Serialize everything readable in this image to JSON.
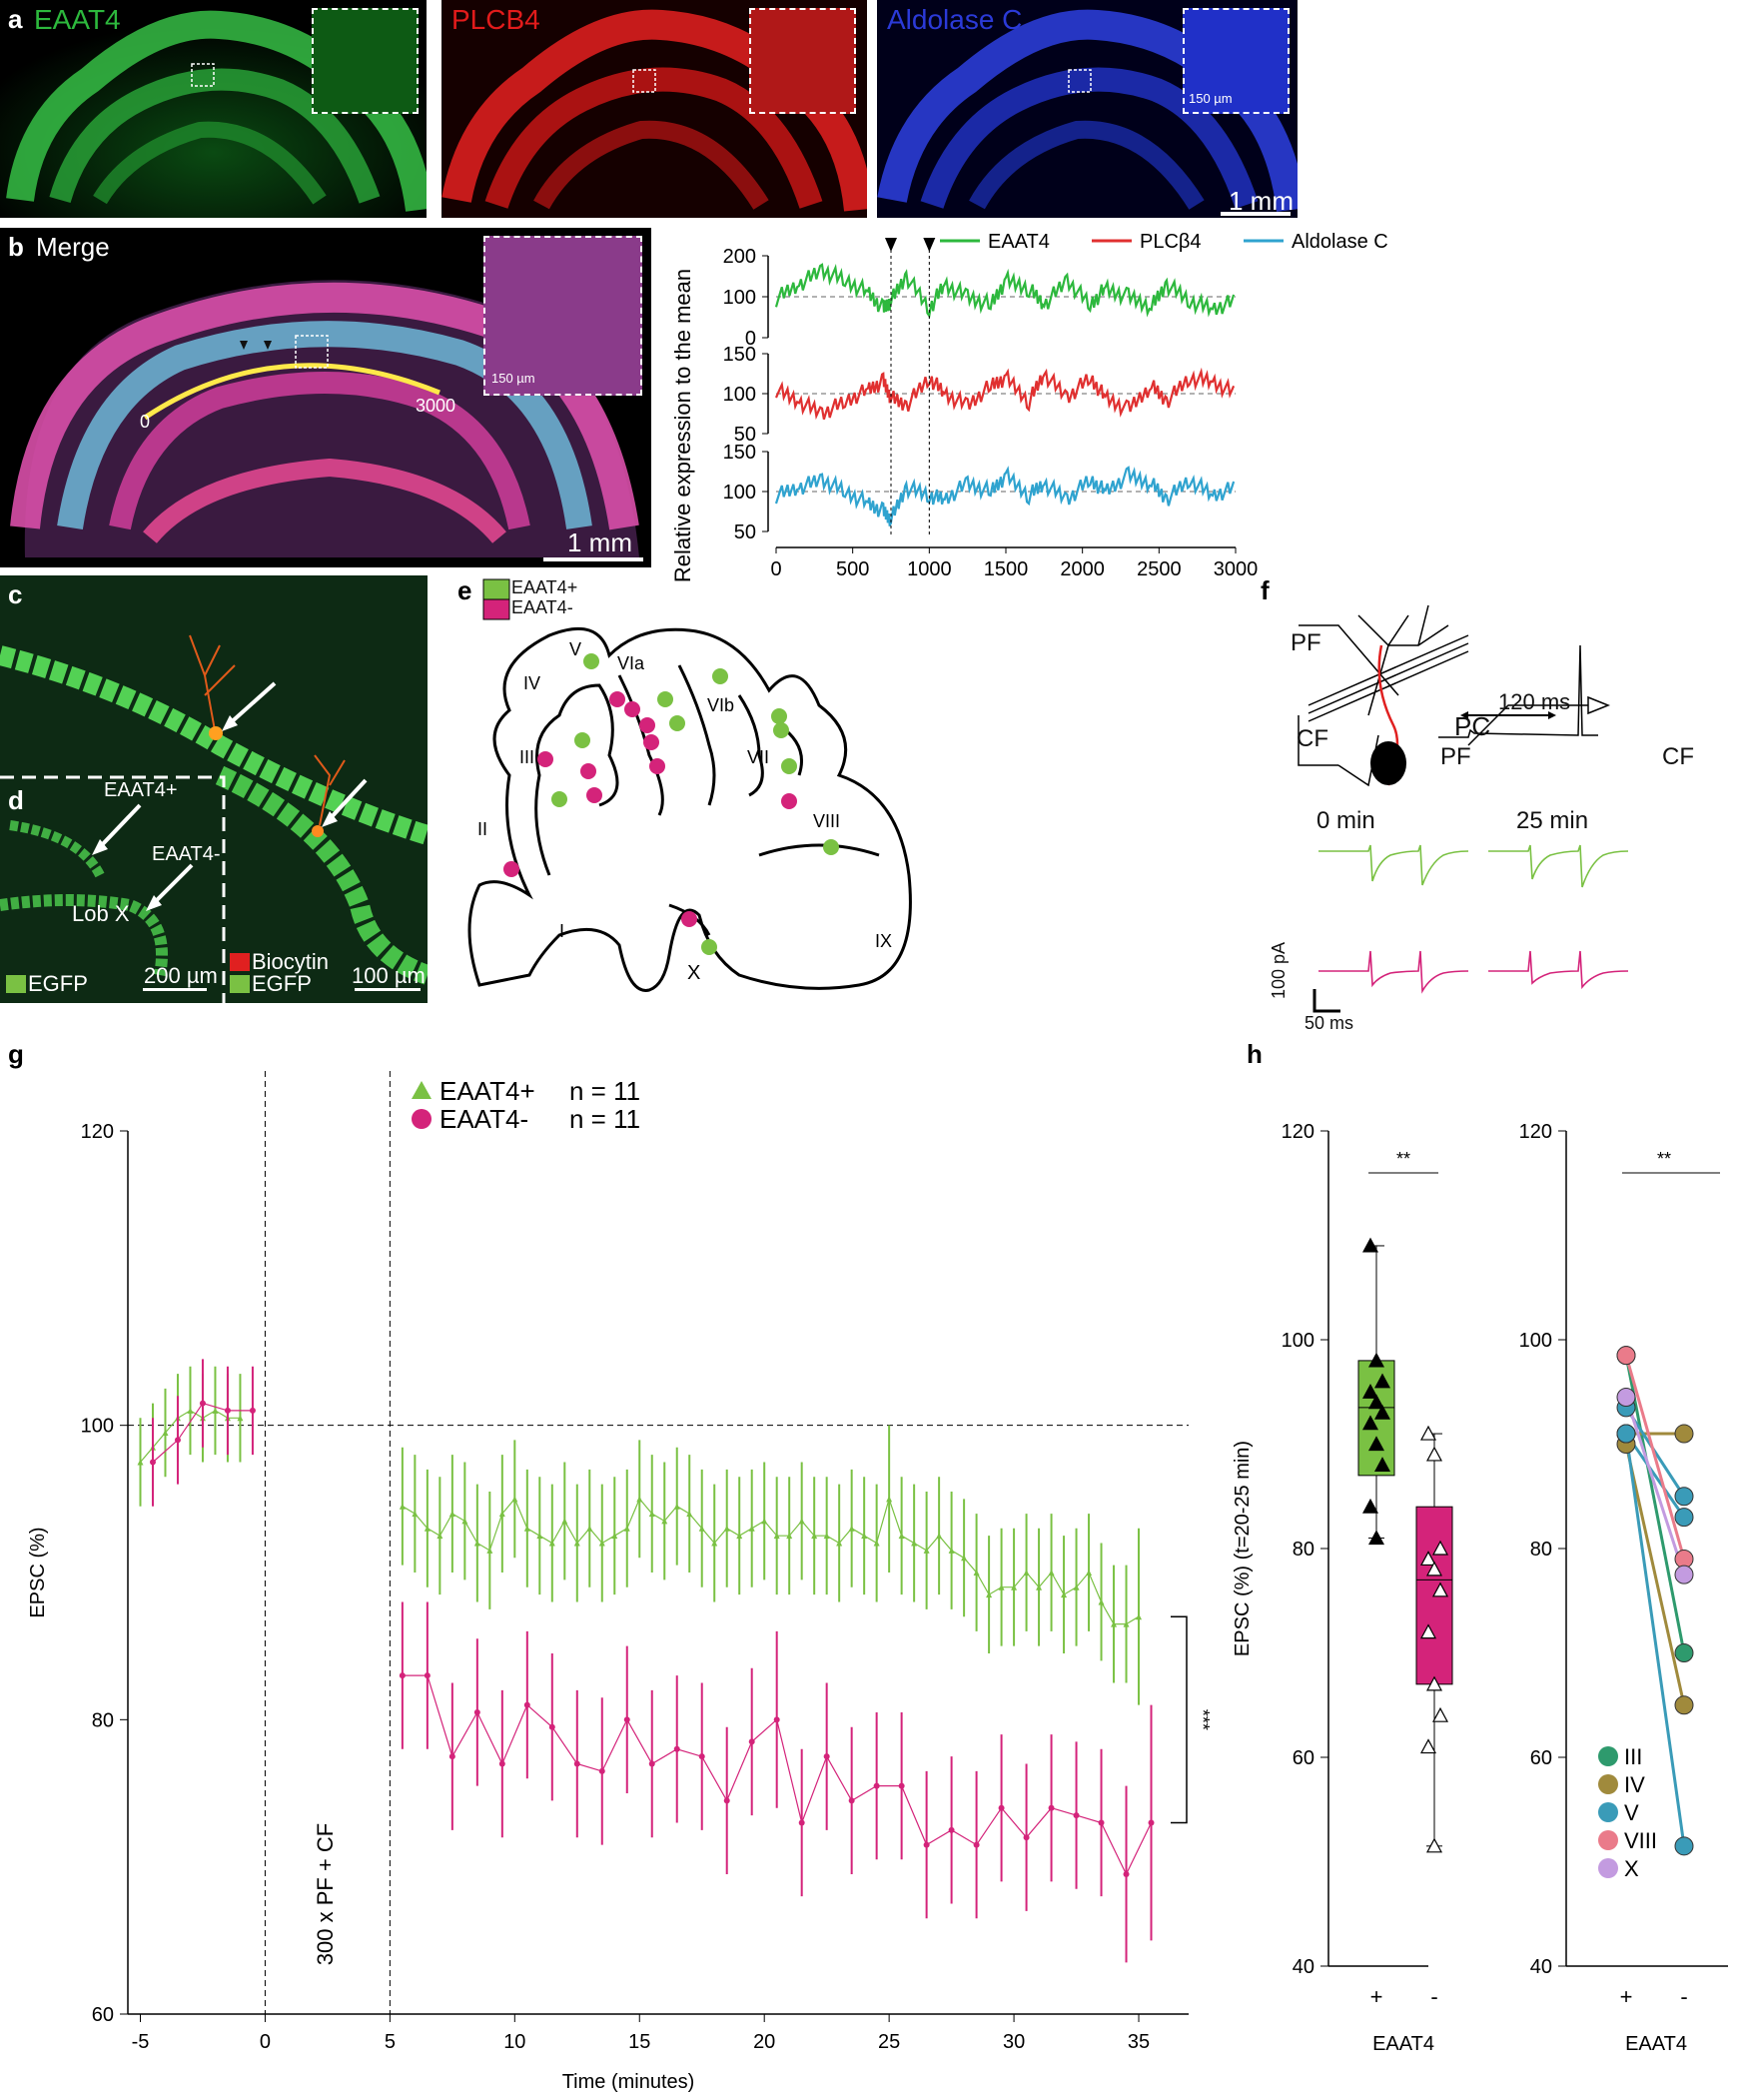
{
  "panel_a": {
    "label": "a",
    "channels": [
      {
        "name": "EAAT4",
        "color": "#2db83d"
      },
      {
        "name": "PLCB4",
        "color": "#e21b1b"
      },
      {
        "name": "Aldolase C",
        "color": "#2b3ad8"
      }
    ],
    "inset_scale": "150 µm",
    "scale": "1 mm"
  },
  "panel_b": {
    "label": "b",
    "title": "Merge",
    "inset_scale": "150 µm",
    "start_label": "0",
    "end_label": "3000",
    "scale": "1 mm"
  },
  "panel_c": {
    "label": "c"
  },
  "panel_d": {
    "label": "d",
    "arrow1": "EAAT4+",
    "arrow2": "EAAT4-",
    "lobule": "Lob X",
    "legend_left": "EGFP",
    "legend_right_1": "Biocytin",
    "legend_right_2": "EGFP",
    "scale_left": "200 µm",
    "scale_right": "100 µm"
  },
  "panel_e": {
    "label": "e",
    "legend": [
      {
        "name": "EAAT4+",
        "color": "#7ac143"
      },
      {
        "name": "EAAT4-",
        "color": "#d4237a"
      }
    ],
    "lobules": [
      "I",
      "II",
      "III",
      "IV",
      "V",
      "VIa",
      "VIb",
      "VII",
      "VIII",
      "IX",
      "X"
    ]
  },
  "panel_f": {
    "label": "f",
    "pf": "PF",
    "cf": "CF",
    "pc": "PC",
    "interval": "120 ms",
    "trace_pf": "PF",
    "trace_cf": "CF",
    "t0": "0 min",
    "t25": "25 min",
    "scale_y": "100 pA",
    "scale_x": "50 ms"
  },
  "panel_g": {
    "label": "g",
    "ylabel": "EPSC (%)",
    "xlabel": "Time (minutes)",
    "protocol": "300 x PF + CF",
    "sig": "***",
    "legend": [
      {
        "name": "EAAT4+",
        "n": "n = 11",
        "color": "#7ac143"
      },
      {
        "name": "EAAT4-",
        "n": "n = 11",
        "color": "#d4237a"
      }
    ]
  },
  "panel_h": {
    "label": "h",
    "ylabel": "EPSC (%) (t=20-25 min)",
    "xlabel": "EAAT4",
    "sig_left": "**",
    "sig_right": "**",
    "x_ticks": [
      "+",
      "-"
    ],
    "lobule_legend": [
      {
        "name": "III",
        "color": "#2e9a6d"
      },
      {
        "name": "IV",
        "color": "#a08a3c"
      },
      {
        "name": "V",
        "color": "#3a9bb8"
      },
      {
        "name": "VIII",
        "color": "#ea7b8a"
      },
      {
        "name": "X",
        "color": "#c39be0"
      }
    ]
  },
  "chart_data": [
    {
      "type": "line",
      "panel": "b",
      "ylabel": "Relative expression to the mean",
      "x_ticks": [
        0,
        500,
        1000,
        1500,
        2000,
        2500,
        3000
      ],
      "markers_x": [
        750,
        1000
      ],
      "series": [
        {
          "name": "EAAT4",
          "color": "#2db83d",
          "ylim": [
            0,
            200
          ],
          "y_ticks": [
            0,
            100,
            200
          ],
          "x": [
            0,
            150,
            300,
            450,
            600,
            700,
            750,
            850,
            1000,
            1100,
            1250,
            1400,
            1500,
            1650,
            1750,
            1900,
            2050,
            2150,
            2300,
            2450,
            2550,
            2700,
            2850,
            3000
          ],
          "values": [
            95,
            130,
            165,
            140,
            110,
            70,
            90,
            150,
            70,
            130,
            100,
            80,
            140,
            120,
            80,
            140,
            80,
            120,
            100,
            75,
            130,
            90,
            70,
            90
          ]
        },
        {
          "name": "PLCβ4",
          "color": "#e03030",
          "ylim": [
            50,
            150
          ],
          "y_ticks": [
            50,
            100,
            150
          ],
          "x": [
            0,
            150,
            300,
            450,
            600,
            700,
            750,
            850,
            1000,
            1100,
            1250,
            1400,
            1500,
            1650,
            1750,
            1900,
            2050,
            2150,
            2300,
            2450,
            2550,
            2700,
            2850,
            3000
          ],
          "values": [
            105,
            90,
            75,
            90,
            105,
            115,
            95,
            85,
            120,
            100,
            85,
            110,
            120,
            90,
            125,
            95,
            120,
            95,
            80,
            110,
            90,
            120,
            115,
            100
          ]
        },
        {
          "name": "Aldolase C",
          "color": "#2fa3cf",
          "ylim": [
            50,
            150
          ],
          "y_ticks": [
            50,
            100,
            150
          ],
          "x": [
            0,
            150,
            300,
            450,
            600,
            700,
            750,
            850,
            1000,
            1100,
            1250,
            1400,
            1500,
            1650,
            1750,
            1900,
            2050,
            2150,
            2300,
            2450,
            2550,
            2700,
            2850,
            3000
          ],
          "values": [
            95,
            105,
            115,
            100,
            85,
            75,
            65,
            105,
            95,
            90,
            110,
            100,
            120,
            95,
            110,
            90,
            115,
            100,
            120,
            110,
            90,
            115,
            95,
            105
          ]
        }
      ]
    },
    {
      "type": "line",
      "panel": "g",
      "xlabel": "Time (minutes)",
      "ylabel": "EPSC (%)",
      "xlim": [
        -5.5,
        37
      ],
      "ylim": [
        60,
        120
      ],
      "x_ticks": [
        -5,
        0,
        5,
        10,
        15,
        20,
        25,
        30,
        35
      ],
      "y_ticks": [
        60,
        80,
        100,
        120
      ],
      "series": [
        {
          "name": "EAAT4+",
          "color": "#7ac143",
          "marker": "triangle",
          "x": [
            -5,
            -4.5,
            -4,
            -3.5,
            -3,
            -2.5,
            -2,
            -1.5,
            -1,
            5.5,
            6,
            6.5,
            7,
            7.5,
            8,
            8.5,
            9,
            9.5,
            10,
            10.5,
            11,
            11.5,
            12,
            12.5,
            13,
            13.5,
            14,
            14.5,
            15,
            15.5,
            16,
            16.5,
            17,
            17.5,
            18,
            18.5,
            19,
            19.5,
            20,
            20.5,
            21,
            21.5,
            22,
            22.5,
            23,
            23.5,
            24,
            24.5,
            25,
            25.5,
            26,
            26.5,
            27,
            27.5,
            28,
            28.5,
            29,
            29.5,
            30,
            30.5,
            31,
            31.5,
            32,
            32.5,
            33,
            33.5,
            34,
            34.5,
            35
          ],
          "values": [
            97.5,
            98.5,
            99.5,
            100.5,
            101,
            100.5,
            101,
            100.5,
            100.5,
            94.5,
            94,
            93,
            92.5,
            94,
            93.5,
            92,
            91.5,
            94,
            95,
            93,
            92.5,
            92,
            93.5,
            92,
            93,
            92,
            92.5,
            93,
            95,
            94,
            93.5,
            94.5,
            94,
            93,
            92,
            93,
            92.5,
            93,
            93.5,
            92.5,
            92.5,
            93.5,
            92.5,
            92.5,
            92,
            93,
            92.5,
            92,
            95,
            92.5,
            92,
            91.5,
            92.5,
            91.5,
            91,
            90,
            88.5,
            89,
            89,
            90,
            89,
            90,
            88.5,
            89,
            90,
            88,
            86.5,
            86.5,
            87
          ],
          "errors": [
            3,
            3,
            3,
            3,
            3,
            3,
            3,
            3,
            3,
            4,
            4,
            4,
            4,
            4,
            4,
            4,
            4,
            4,
            4,
            4,
            4,
            4,
            4,
            4,
            4,
            4,
            4,
            4,
            4,
            4,
            4,
            4,
            4,
            4,
            4,
            4,
            4,
            4,
            4,
            4,
            4,
            4,
            4,
            4,
            4,
            4,
            4,
            4,
            5,
            4,
            4,
            4,
            4,
            4,
            4,
            4,
            4,
            4,
            4,
            4,
            4,
            4,
            4,
            4,
            4,
            4,
            4,
            4,
            6
          ]
        },
        {
          "name": "EAAT4-",
          "color": "#d4237a",
          "marker": "circle",
          "x": [
            -4.5,
            -3.5,
            -2.5,
            -1.5,
            -0.5,
            5.5,
            6.5,
            7.5,
            8.5,
            9.5,
            10.5,
            11.5,
            12.5,
            13.5,
            14.5,
            15.5,
            16.5,
            17.5,
            18.5,
            19.5,
            20.5,
            21.5,
            22.5,
            23.5,
            24.5,
            25.5,
            26.5,
            27.5,
            28.5,
            29.5,
            30.5,
            31.5,
            32.5,
            33.5,
            34.5,
            35.5
          ],
          "values": [
            97.5,
            99,
            101.5,
            101,
            101,
            83,
            83,
            77.5,
            80.5,
            77,
            81,
            79.5,
            77,
            76.5,
            80,
            77,
            78,
            77.5,
            74.5,
            78.5,
            80,
            73,
            77.5,
            74.5,
            75.5,
            75.5,
            71.5,
            72.5,
            71.5,
            74,
            72,
            74,
            73.5,
            73,
            69.5,
            73
          ],
          "errors": [
            3,
            3,
            3,
            3,
            3,
            5,
            5,
            5,
            5,
            5,
            5,
            5,
            5,
            5,
            5,
            5,
            5,
            5,
            5,
            5,
            6,
            5,
            5,
            5,
            5,
            5,
            5,
            5,
            5,
            5,
            5,
            5,
            5,
            5,
            6,
            8
          ]
        }
      ]
    },
    {
      "type": "box",
      "panel": "h-left",
      "ylabel": "EPSC (%) (t=20-25 min)",
      "xlabel": "EAAT4",
      "categories": [
        "+",
        "-"
      ],
      "ylim": [
        40,
        120
      ],
      "y_ticks": [
        40,
        60,
        80,
        100,
        120
      ],
      "series": [
        {
          "name": "EAAT4+",
          "color": "#7ac143",
          "box": {
            "min": 81,
            "q1": 87,
            "median": 93.5,
            "q3": 98,
            "max": 109
          },
          "points": [
            109,
            98,
            96,
            95,
            94,
            93,
            92,
            90,
            88,
            84,
            81
          ]
        },
        {
          "name": "EAAT4-",
          "color": "#d4237a",
          "box": {
            "min": 51.5,
            "q1": 67,
            "median": 77,
            "q3": 84,
            "max": 91
          },
          "points": [
            91,
            89,
            80,
            79,
            78,
            76,
            72,
            67,
            64,
            61,
            51.5
          ]
        }
      ]
    },
    {
      "type": "paired",
      "panel": "h-right",
      "xlabel": "EAAT4",
      "categories": [
        "+",
        "-"
      ],
      "ylim": [
        40,
        120
      ],
      "y_ticks": [
        40,
        60,
        80,
        100,
        120
      ],
      "pairs": [
        {
          "lobule": "III",
          "plus": 98.5,
          "minus": 70
        },
        {
          "lobule": "IV",
          "plus": 90,
          "minus": 65
        },
        {
          "lobule": "IV",
          "plus": 91,
          "minus": 91
        },
        {
          "lobule": "V",
          "plus": 93.5,
          "minus": 85
        },
        {
          "lobule": "V",
          "plus": 91,
          "minus": 83
        },
        {
          "lobule": "V",
          "plus": 91,
          "minus": 51.5
        },
        {
          "lobule": "VIII",
          "plus": 98.5,
          "minus": 79
        },
        {
          "lobule": "X",
          "plus": 94.5,
          "minus": 77.5
        }
      ]
    }
  ]
}
